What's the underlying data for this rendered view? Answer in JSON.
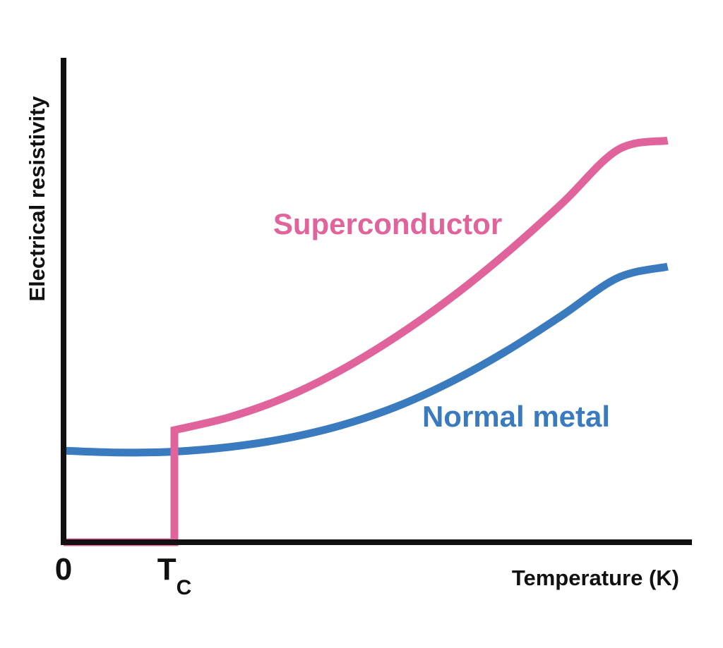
{
  "chart_data": {
    "type": "line",
    "xlabel": "Temperature (K)",
    "ylabel": "Electrical resistivity",
    "x_ticks": [
      {
        "x": 0,
        "main": "0",
        "sub": ""
      },
      {
        "x": 1,
        "main": "T",
        "sub": "C"
      }
    ],
    "xlim": [
      0,
      5.6
    ],
    "ylim": [
      0,
      4.5
    ],
    "grid": false,
    "legend": "none",
    "series": [
      {
        "name": "Superconductor",
        "color": "#E0639B",
        "points": [
          [
            0,
            0
          ],
          [
            1,
            0
          ],
          [
            1,
            1.2
          ],
          [
            1.5,
            1.34
          ],
          [
            2,
            1.55
          ],
          [
            2.5,
            1.84
          ],
          [
            3,
            2.2
          ],
          [
            3.5,
            2.62
          ],
          [
            4,
            3.1
          ],
          [
            4.5,
            3.63
          ],
          [
            5,
            4.2
          ],
          [
            5.45,
            4.3
          ]
        ]
      },
      {
        "name": "Normal metal",
        "color": "#3A7BBF",
        "points": [
          [
            0,
            0.98
          ],
          [
            0.5,
            0.96
          ],
          [
            1,
            0.97
          ],
          [
            1.5,
            1.02
          ],
          [
            2,
            1.11
          ],
          [
            2.5,
            1.25
          ],
          [
            3,
            1.45
          ],
          [
            3.5,
            1.72
          ],
          [
            4,
            2.05
          ],
          [
            4.5,
            2.43
          ],
          [
            5,
            2.83
          ],
          [
            5.45,
            2.95
          ]
        ]
      }
    ]
  }
}
